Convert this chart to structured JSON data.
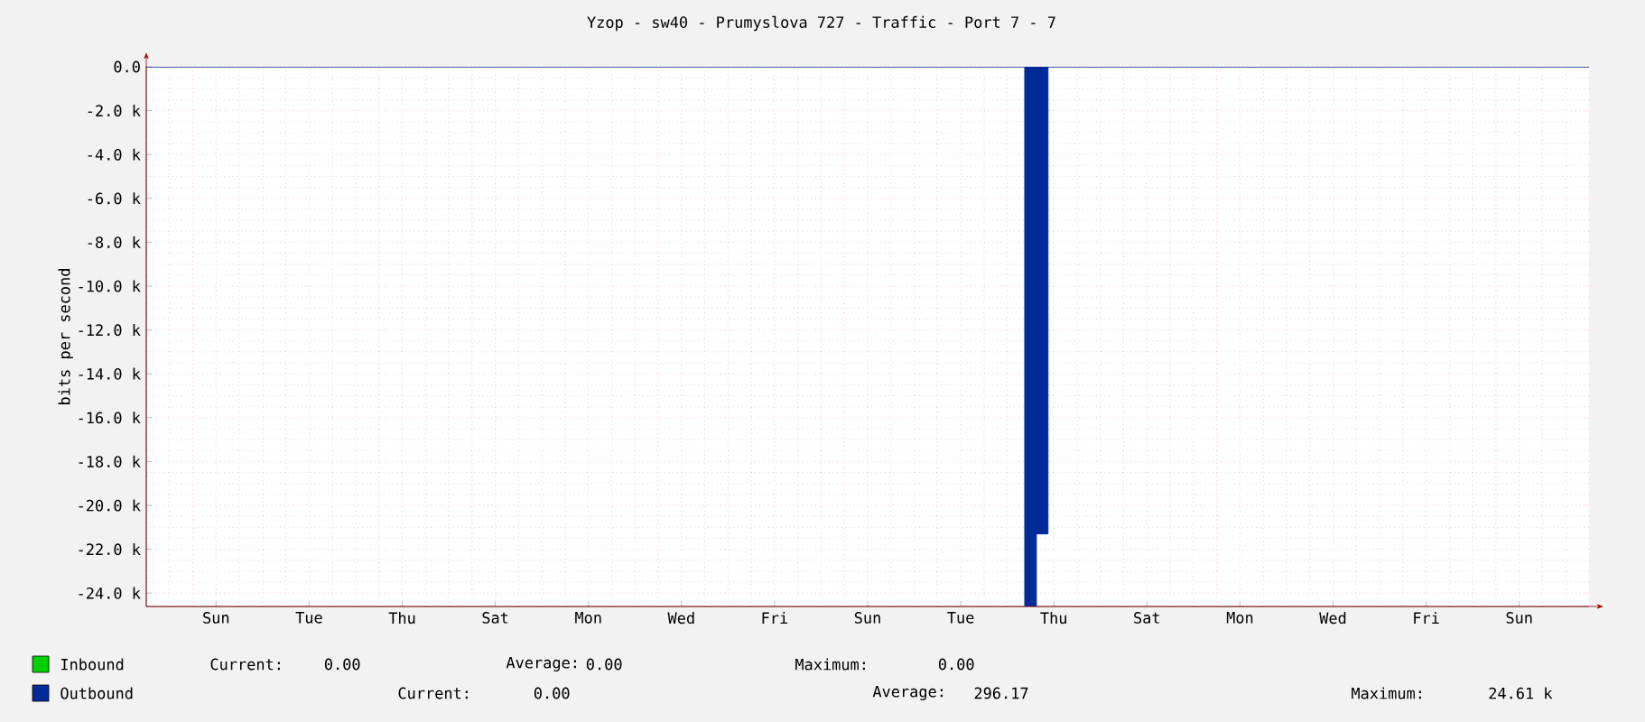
{
  "chart_data": {
    "type": "area",
    "title": "Yzop - sw40 - Prumyslova 727 - Traffic - Port  7 - 7",
    "ylabel": "bits per second",
    "categories": [
      null,
      null,
      null,
      null,
      null,
      null,
      "Sun",
      null,
      null,
      null,
      null,
      null,
      null,
      null,
      "Tue",
      null,
      null,
      null,
      null,
      null,
      null,
      null,
      "Thu",
      null,
      null,
      null,
      null,
      null,
      null,
      null,
      "Sat",
      null,
      null,
      null,
      null,
      null,
      null,
      null,
      "Mon",
      null,
      null,
      null,
      null,
      null,
      null,
      null,
      "Wed",
      null,
      null,
      null,
      null,
      null,
      null,
      null,
      "Fri",
      null,
      null,
      null,
      null,
      null,
      null,
      null,
      "Sun",
      null,
      null,
      null,
      null,
      null,
      null,
      null,
      "Tue",
      null,
      null,
      null,
      null,
      null,
      null,
      null,
      "Thu",
      null,
      null,
      null,
      null,
      null,
      null,
      null,
      "Sat",
      null,
      null,
      null,
      null,
      null,
      null,
      null,
      "Mon",
      null,
      null,
      null,
      null,
      null,
      null,
      null,
      "Wed",
      null,
      null,
      null,
      null,
      null,
      null,
      null,
      "Fri",
      null,
      null,
      null,
      null,
      null,
      null,
      null,
      "Sun",
      null,
      null,
      null,
      null,
      null,
      null
    ],
    "ylim": [
      -24610,
      0
    ],
    "yticks": [
      {
        "value": 0,
        "label": "0.0"
      },
      {
        "value": -2000,
        "label": "-2.0 k"
      },
      {
        "value": -4000,
        "label": "-4.0 k"
      },
      {
        "value": -6000,
        "label": "-6.0 k"
      },
      {
        "value": -8000,
        "label": "-8.0 k"
      },
      {
        "value": -10000,
        "label": "-10.0 k"
      },
      {
        "value": -12000,
        "label": "-12.0 k"
      },
      {
        "value": -14000,
        "label": "-14.0 k"
      },
      {
        "value": -16000,
        "label": "-16.0 k"
      },
      {
        "value": -18000,
        "label": "-18.0 k"
      },
      {
        "value": -20000,
        "label": "-20.0 k"
      },
      {
        "value": -22000,
        "label": "-22.0 k"
      },
      {
        "value": -24000,
        "label": "-24.0 k"
      }
    ],
    "grid": true,
    "legend": "bottom",
    "series": [
      {
        "name": "Inbound",
        "color": "#00cf00",
        "values": [
          null,
          null,
          null,
          null,
          null,
          null,
          null,
          null,
          null,
          null,
          null,
          null,
          null,
          null,
          null,
          null,
          null,
          null,
          null,
          null,
          null,
          null,
          null,
          null,
          null,
          null,
          null,
          null,
          null,
          null,
          null,
          null,
          null,
          null,
          null,
          null,
          null,
          null,
          null,
          null,
          null,
          null,
          null,
          null,
          null,
          null,
          null,
          null,
          null,
          null,
          null,
          null,
          null,
          null,
          null,
          null,
          null,
          null,
          null,
          null,
          null,
          null,
          null,
          null,
          null,
          null,
          null,
          null,
          null,
          null,
          null,
          null,
          null,
          null,
          null,
          null,
          null,
          null,
          null,
          null,
          null,
          null,
          null,
          null,
          null,
          null,
          null,
          null,
          null,
          null,
          null,
          null,
          null,
          null,
          null,
          null,
          null,
          null,
          null,
          null,
          null,
          null,
          null,
          null,
          null,
          null,
          null,
          null,
          null,
          null,
          null,
          null,
          null,
          null,
          null,
          null,
          null,
          null,
          null,
          null,
          null,
          null,
          null,
          null,
          null
        ]
      },
      {
        "name": "Outbound",
        "color": "#002a97",
        "values": [
          0,
          0,
          0,
          0,
          0,
          0,
          0,
          0,
          0,
          0,
          0,
          0,
          0,
          0,
          0,
          0,
          0,
          0,
          0,
          0,
          0,
          0,
          0,
          0,
          0,
          0,
          0,
          0,
          0,
          0,
          0,
          0,
          0,
          0,
          0,
          0,
          0,
          0,
          0,
          0,
          0,
          0,
          0,
          0,
          0,
          0,
          0,
          0,
          0,
          0,
          0,
          0,
          0,
          0,
          0,
          0,
          0,
          0,
          0,
          0,
          0,
          0,
          0,
          0,
          0,
          0,
          0,
          0,
          0,
          0,
          0,
          0,
          0,
          0,
          0,
          0,
          -24610,
          -21300,
          0,
          0,
          0,
          0,
          0,
          0,
          0,
          0,
          0,
          0,
          0,
          0,
          0,
          0,
          0,
          0,
          0,
          0,
          0,
          0,
          0,
          0,
          0,
          0,
          0,
          0,
          0,
          0,
          0,
          0,
          0,
          0,
          0,
          0,
          0,
          0,
          0,
          0,
          0,
          0,
          0,
          0,
          0,
          0,
          0,
          0,
          0
        ]
      }
    ],
    "annotations": [
      "Current:",
      "0.00",
      "Average:",
      "0.00",
      "Maximum:",
      "0.00",
      "Current:",
      "0.00",
      "Average:",
      "296.17",
      "Maximum:",
      "24.61 k"
    ]
  }
}
